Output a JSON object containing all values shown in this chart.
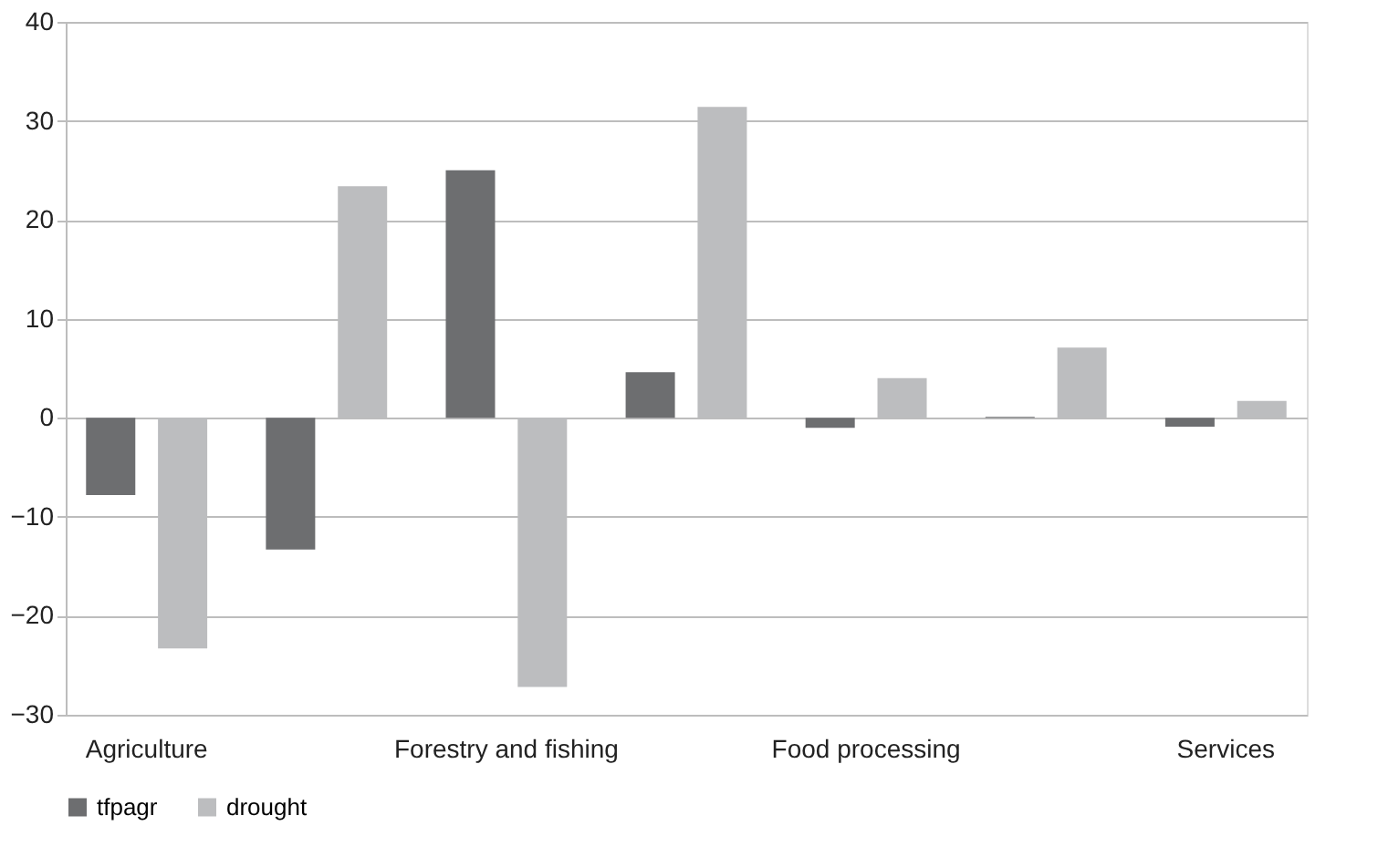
{
  "chart_data": {
    "type": "bar",
    "categories": [
      "Agriculture",
      null,
      "Forestry and fishing",
      null,
      "Food processing",
      null,
      "Services"
    ],
    "series": [
      {
        "name": "tfpagr",
        "color": "#6d6e70",
        "values": [
          -7.8,
          -13.3,
          25.0,
          4.6,
          -1.0,
          0.1,
          -0.9
        ]
      },
      {
        "name": "drought",
        "color": "#bcbdbf",
        "values": [
          -23.3,
          23.4,
          -27.2,
          31.4,
          4.0,
          7.1,
          1.7
        ]
      }
    ],
    "ylim": [
      -30,
      40
    ],
    "yticks": [
      -30,
      -20,
      -10,
      0,
      10,
      20,
      30,
      40
    ],
    "grid": "y",
    "legend": "bottom"
  }
}
